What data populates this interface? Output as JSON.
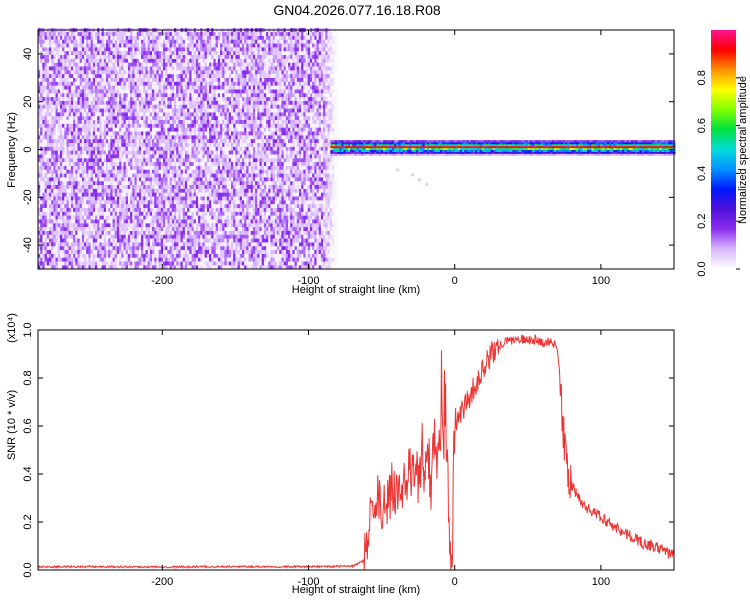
{
  "figure": {
    "title": "GN04.2026.077.16.18.R08"
  },
  "chart_data": [
    {
      "type": "heatmap",
      "title": "GN04.2026.077.16.18.R08",
      "xlabel": "Height of straight line (km)",
      "ylabel": "Frequency (Hz)",
      "xlim": [
        -285,
        150
      ],
      "ylim": [
        -50,
        50
      ],
      "x_ticks": [
        -200,
        -100,
        0,
        100
      ],
      "y_ticks": [
        -40,
        -20,
        0,
        20,
        40
      ],
      "x_tick_labels": [
        "-200",
        "-100",
        "0",
        "100"
      ],
      "y_tick_labels": [
        "-40",
        "-20",
        "0",
        "20",
        "40"
      ],
      "noise_region_x": [
        -285,
        -82
      ],
      "signal_band": {
        "x_start": -85,
        "x_end": 150,
        "frequency_center": 0.5,
        "frequency_halfwidth": 3
      },
      "grid": false,
      "colorbar": {
        "label": "Normalized spectral amplitude",
        "range": [
          0.0,
          1.0
        ],
        "ticks": [
          0.0,
          0.2,
          0.4,
          0.6,
          0.8
        ],
        "tick_labels": [
          "0.0",
          "0.2",
          "0.4",
          "0.6",
          "0.8"
        ],
        "colormap": [
          "#ffffff",
          "#d9b8ff",
          "#8c2eef",
          "#5010d8",
          "#0018ff",
          "#0090ff",
          "#00dcdc",
          "#00e040",
          "#80ff00",
          "#ffff00",
          "#ff9000",
          "#ff0000",
          "#ff1493"
        ]
      }
    },
    {
      "type": "line",
      "xlabel": "Height of straight line (km)",
      "ylabel": "SNR (10 * v/v)",
      "y_multiplier_label": "(x10⁴)",
      "xlim": [
        -285,
        150
      ],
      "ylim": [
        0,
        1.0
      ],
      "x_ticks": [
        -200,
        -100,
        0,
        100
      ],
      "y_ticks": [
        0.0,
        0.2,
        0.4,
        0.6,
        0.8,
        1.0
      ],
      "x_tick_labels": [
        "-200",
        "-100",
        "0",
        "100"
      ],
      "y_tick_labels": [
        "0.0",
        "0.2",
        "0.4",
        "0.6",
        "0.8",
        "1.0"
      ],
      "grid": false,
      "series": [
        {
          "color": "#ee3333",
          "x": [
            -285,
            -250,
            -200,
            -150,
            -100,
            -70,
            -62,
            -58,
            -55,
            -50,
            -45,
            -40,
            -35,
            -30,
            -25,
            -20,
            -15,
            -10,
            -5,
            -3,
            -1,
            0,
            5,
            10,
            15,
            20,
            25,
            30,
            35,
            40,
            45,
            50,
            55,
            60,
            65,
            70,
            72,
            75,
            78,
            80,
            85,
            90,
            100,
            110,
            120,
            130,
            140,
            150
          ],
          "y": [
            0.013,
            0.014,
            0.013,
            0.014,
            0.014,
            0.016,
            0.04,
            0.2,
            0.32,
            0.28,
            0.3,
            0.33,
            0.36,
            0.38,
            0.4,
            0.43,
            0.47,
            0.52,
            0.5,
            0.02,
            0.58,
            0.62,
            0.66,
            0.72,
            0.78,
            0.84,
            0.9,
            0.93,
            0.95,
            0.96,
            0.96,
            0.96,
            0.96,
            0.95,
            0.95,
            0.94,
            0.8,
            0.5,
            0.4,
            0.35,
            0.3,
            0.26,
            0.22,
            0.18,
            0.14,
            0.11,
            0.09,
            0.06
          ]
        }
      ]
    }
  ]
}
